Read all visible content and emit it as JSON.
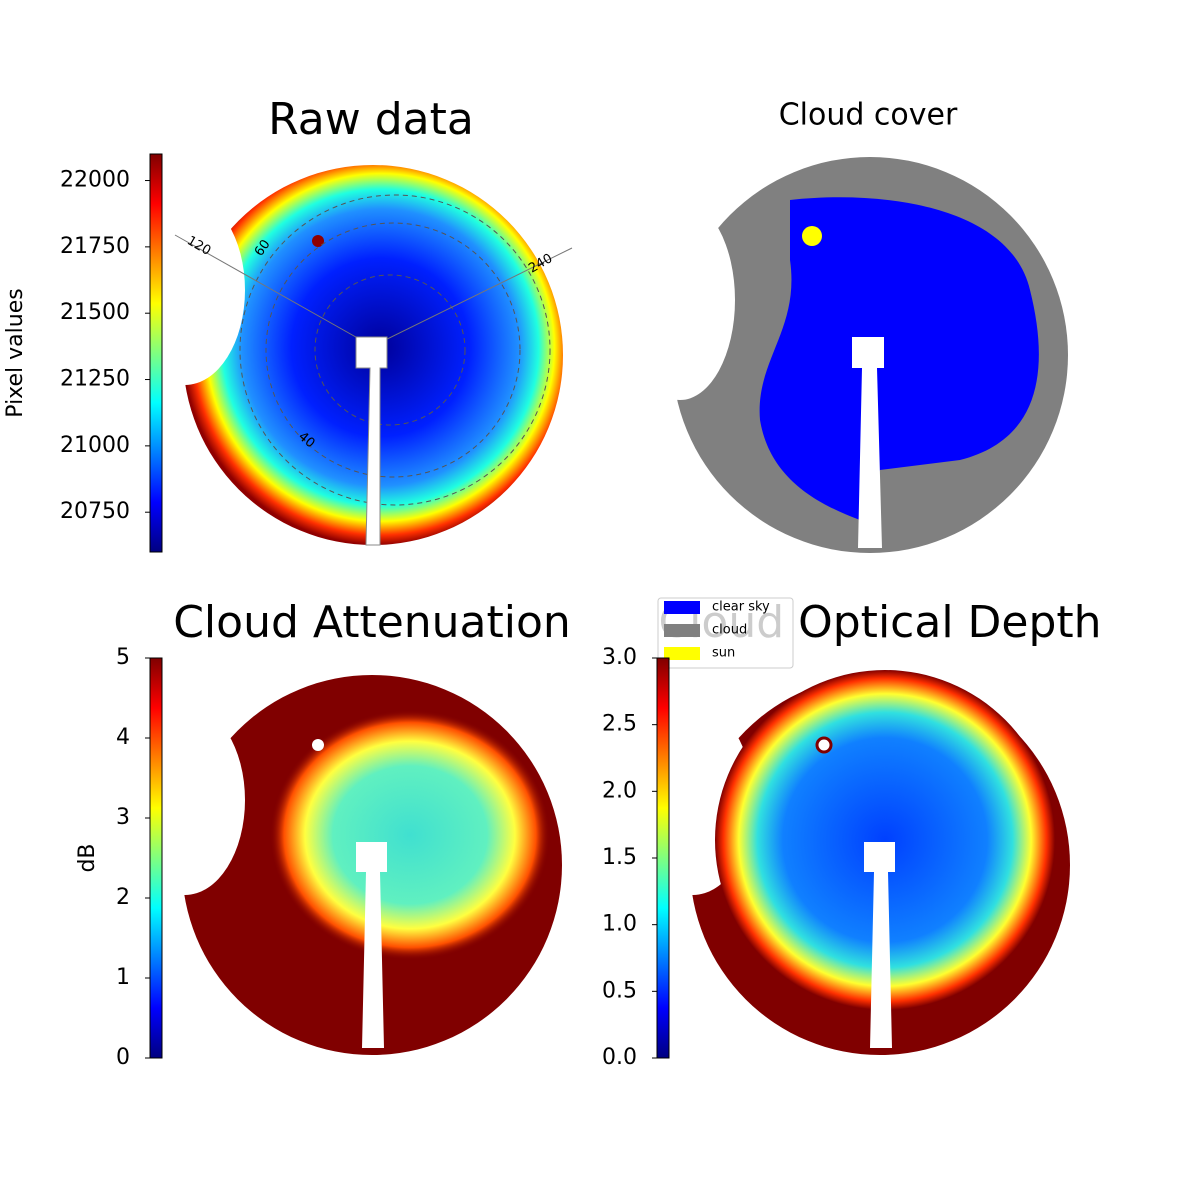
{
  "chart_data": [
    {
      "type": "image",
      "title": "Raw data",
      "colormap": "jet",
      "colorbar": {
        "label": "Pixel values",
        "lim": [
          20600,
          22100
        ],
        "ticks": [
          20750,
          21000,
          21250,
          21500,
          21750,
          22000
        ]
      },
      "polar_labels": [
        "120",
        "60",
        "240",
        "40"
      ]
    },
    {
      "type": "image",
      "title": "Cloud cover",
      "legend": [
        {
          "name": "clear sky",
          "color": "#0000ff"
        },
        {
          "name": "cloud",
          "color": "#808080"
        },
        {
          "name": "sun",
          "color": "#ffff00"
        }
      ]
    },
    {
      "type": "image",
      "title": "Cloud Attenuation",
      "colormap": "jet",
      "colorbar": {
        "label": "dB",
        "lim": [
          0,
          5
        ],
        "ticks": [
          0,
          1,
          2,
          3,
          4,
          5
        ]
      }
    },
    {
      "type": "image",
      "title": "Cloud Optical Depth",
      "colormap": "jet",
      "colorbar": {
        "lim": [
          0,
          3
        ],
        "ticks": [
          {
            "value": 0,
            "label": "0.0"
          },
          {
            "value": 0.5,
            "label": "0.5"
          },
          {
            "value": 1,
            "label": "1.0"
          },
          {
            "value": 1.5,
            "label": "1.5"
          },
          {
            "value": 2,
            "label": "2.0"
          },
          {
            "value": 2.5,
            "label": "2.5"
          },
          {
            "value": 3,
            "label": "3.0"
          }
        ]
      }
    }
  ]
}
